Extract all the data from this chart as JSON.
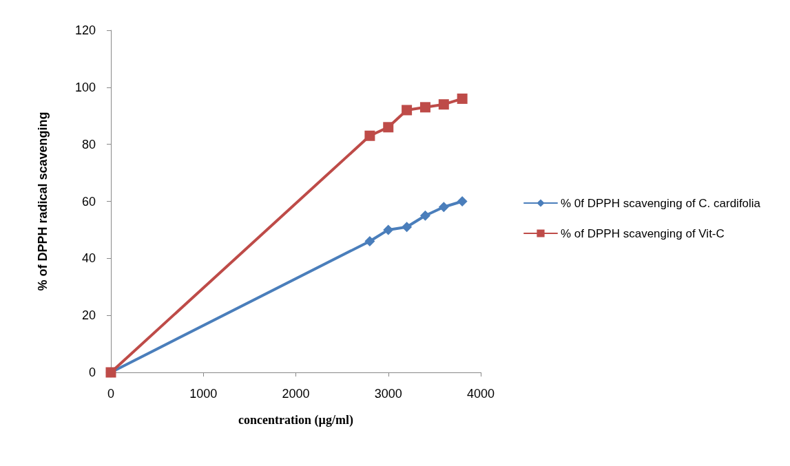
{
  "chart_data": {
    "type": "line",
    "xlabel": "concentration (µg/ml)",
    "ylabel": "% of DPPH radical scavenging",
    "x": [
      0,
      2800,
      3000,
      3200,
      3400,
      3600,
      3800
    ],
    "series": [
      {
        "name": "% 0f DPPH scavenging of C. cardifolia",
        "color": "#4a7ebb",
        "marker": "diamond",
        "values": [
          0,
          46,
          50,
          51,
          55,
          58,
          60
        ]
      },
      {
        "name": "% of DPPH scavenging of Vit-C",
        "color": "#be4b48",
        "marker": "square",
        "values": [
          0,
          83,
          86,
          92,
          93,
          94,
          96
        ]
      }
    ],
    "xlim": [
      0,
      4000
    ],
    "xticks": [
      0,
      1000,
      2000,
      3000,
      4000
    ],
    "ylim": [
      0,
      120
    ],
    "yticks": [
      0,
      20,
      40,
      60,
      80,
      100,
      120
    ],
    "grid": false,
    "legend": "right",
    "line_style": "solid"
  }
}
